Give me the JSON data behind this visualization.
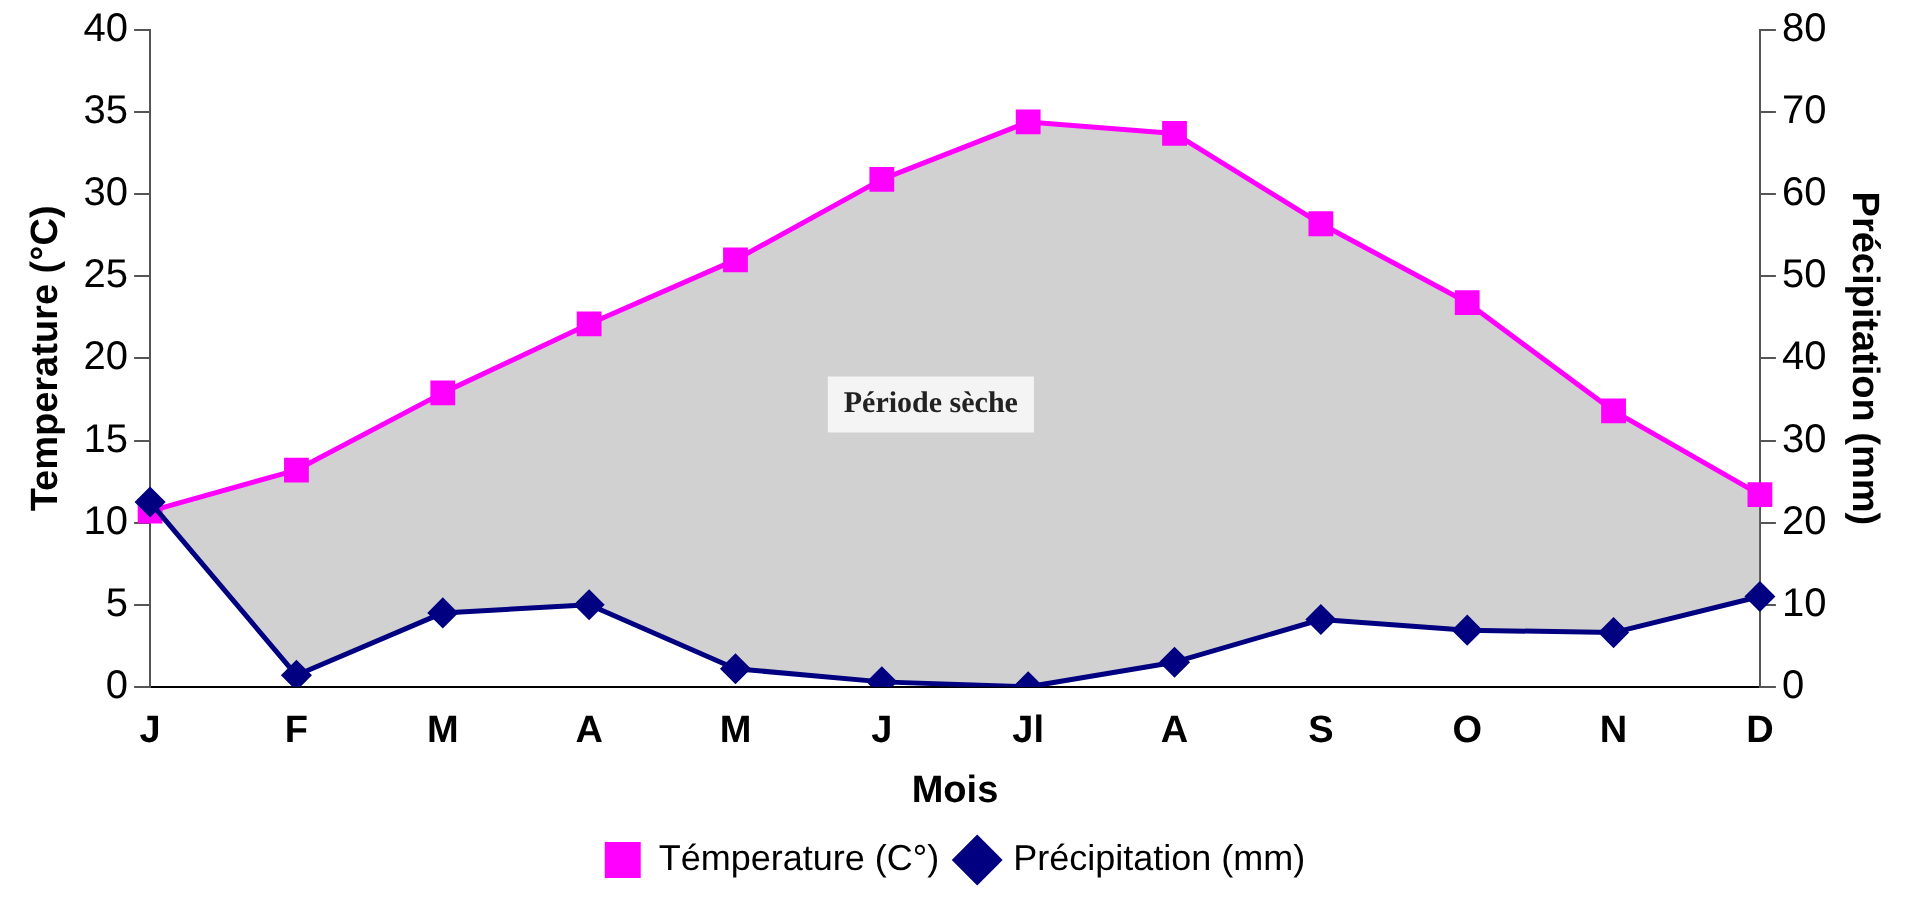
{
  "chart_data": {
    "type": "line",
    "xlabel": "Mois",
    "ylabel": "Temperature (°C)",
    "y2label": "Précipitation (mm)",
    "categories": [
      "J",
      "F",
      "M",
      "A",
      "M",
      "J",
      "Jl",
      "A",
      "S",
      "O",
      "N",
      "D"
    ],
    "series": [
      {
        "name": "Témperature (C°)",
        "color": "#ff00ff",
        "marker": "square",
        "values": [
          10.7,
          13.2,
          17.9,
          22.1,
          26,
          30.9,
          34.4,
          33.7,
          28.2,
          23.4,
          16.8,
          11.7
        ],
        "upper": [
          10.7,
          13.2,
          17.9,
          22.1,
          26,
          30.9,
          34.4,
          33.7,
          28.2,
          23.4,
          16.8,
          11.7
        ],
        "lower": [
          11.25,
          0.7,
          4.5,
          5,
          1.1,
          0.3,
          0,
          1.5,
          4.1,
          3.45,
          3.3,
          5.5
        ]
      },
      {
        "name": "Précipitation (mm)",
        "color": "#000080",
        "marker": "diamond",
        "axis": "y2",
        "values": [
          22.5,
          1.4,
          9,
          10,
          2.2,
          0.6,
          0,
          3,
          8.2,
          6.9,
          6.6,
          11
        ]
      }
    ],
    "ylim": [
      0,
      40
    ],
    "yticks": [
      0,
      5,
      10,
      15,
      20,
      25,
      30,
      35,
      40
    ],
    "y2lim": [
      0,
      80
    ],
    "y2ticks": [
      0,
      10,
      20,
      30,
      40,
      50,
      60,
      70,
      80
    ],
    "annotations": [
      "Période sèche"
    ],
    "grid": false,
    "legend": "bottom",
    "line_style": "solid"
  }
}
